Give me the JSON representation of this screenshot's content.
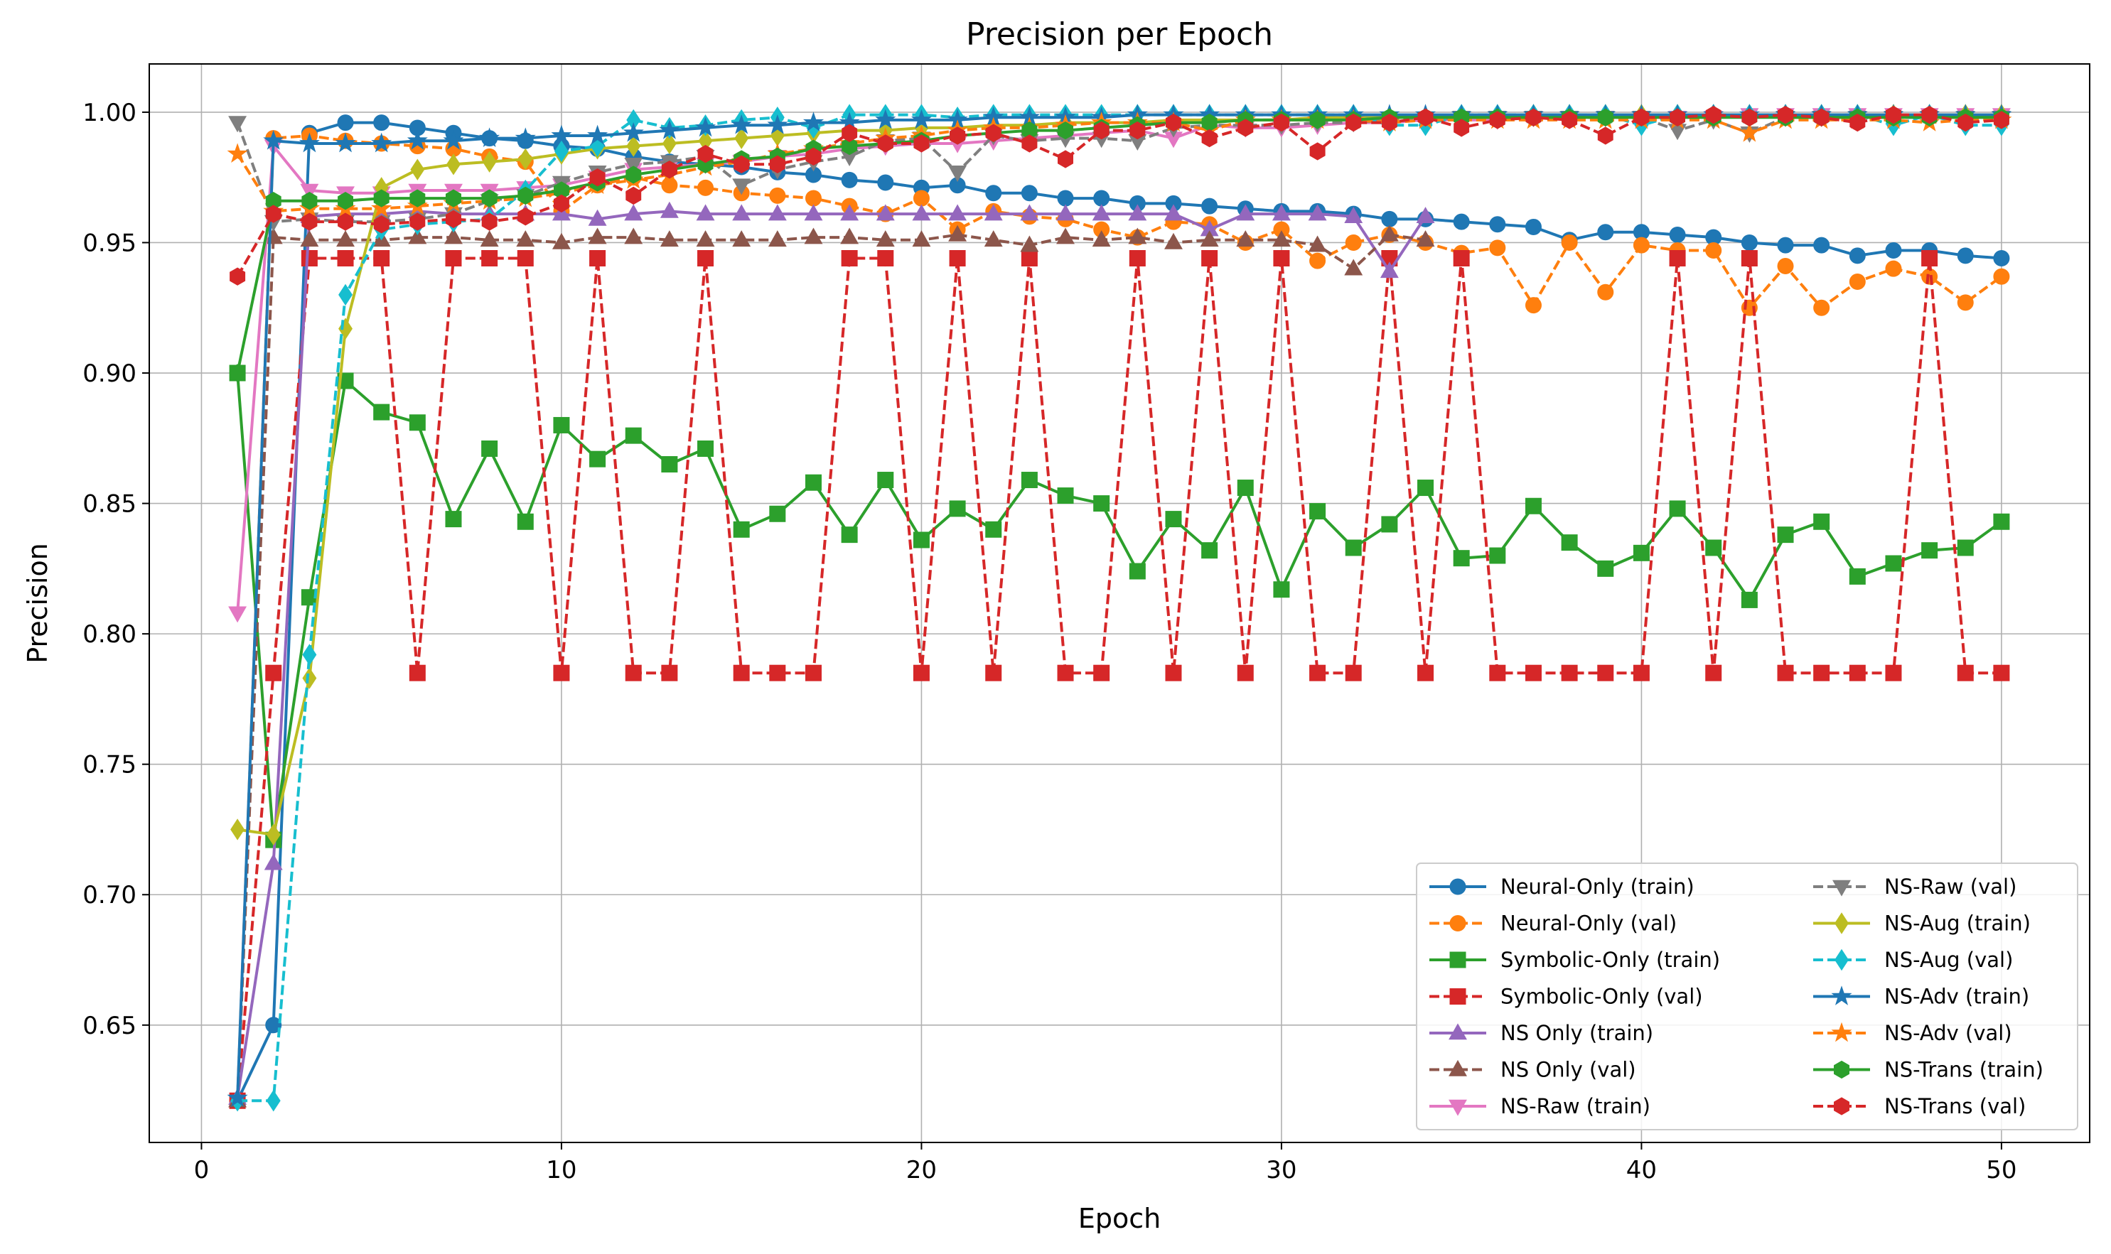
{
  "chart_data": {
    "type": "line",
    "title": "Precision per Epoch",
    "xlabel": "Epoch",
    "ylabel": "Precision",
    "xlim": [
      -1.45,
      52.45
    ],
    "ylim": [
      0.605,
      1.0185
    ],
    "xticks": [
      0,
      10,
      20,
      30,
      40,
      50
    ],
    "yticks": [
      0.65,
      0.7,
      0.75,
      0.8,
      0.85,
      0.9,
      0.95,
      1.0
    ],
    "ytick_labels": [
      "0.65",
      "0.70",
      "0.75",
      "0.80",
      "0.85",
      "0.90",
      "0.95",
      "1.00"
    ],
    "grid": true,
    "legend_position": "lower-right",
    "legend_columns": 2,
    "x": [
      1,
      2,
      3,
      4,
      5,
      6,
      7,
      8,
      9,
      10,
      11,
      12,
      13,
      14,
      15,
      16,
      17,
      18,
      19,
      20,
      21,
      22,
      23,
      24,
      25,
      26,
      27,
      28,
      29,
      30,
      31,
      32,
      33,
      34,
      35,
      36,
      37,
      38,
      39,
      40,
      41,
      42,
      43,
      44,
      45,
      46,
      47,
      48,
      49,
      50
    ],
    "series": [
      {
        "name": "Neural-Only (train)",
        "color": "#1f77b4",
        "marker": "circle",
        "dash": "solid",
        "values": [
          0.621,
          0.65,
          0.992,
          0.996,
          0.996,
          0.994,
          0.992,
          0.99,
          0.989,
          0.987,
          0.986,
          0.983,
          0.981,
          0.98,
          0.979,
          0.977,
          0.976,
          0.974,
          0.973,
          0.971,
          0.972,
          0.969,
          0.969,
          0.967,
          0.967,
          0.965,
          0.965,
          0.964,
          0.963,
          0.962,
          0.962,
          0.961,
          0.959,
          0.959,
          0.958,
          0.957,
          0.956,
          0.951,
          0.954,
          0.954,
          0.953,
          0.952,
          0.95,
          0.949,
          0.949,
          0.945,
          0.947,
          0.947,
          0.945,
          0.944
        ]
      },
      {
        "name": "Neural-Only (val)",
        "color": "#ff7f0e",
        "marker": "circle",
        "dash": "dashed",
        "values": [
          0.621,
          0.99,
          0.991,
          0.989,
          0.988,
          0.987,
          0.986,
          0.983,
          0.981,
          0.962,
          0.972,
          0.975,
          0.972,
          0.971,
          0.969,
          0.968,
          0.967,
          0.964,
          0.961,
          0.967,
          0.955,
          0.962,
          0.96,
          0.959,
          0.955,
          0.952,
          0.958,
          0.957,
          0.95,
          0.955,
          0.943,
          0.95,
          0.953,
          0.95,
          0.946,
          0.948,
          0.926,
          0.95,
          0.931,
          0.949,
          0.947,
          0.947,
          0.925,
          0.941,
          0.925,
          0.935,
          0.94,
          0.937,
          0.927,
          0.937
        ]
      },
      {
        "name": "Symbolic-Only (train)",
        "color": "#2ca02c",
        "marker": "square",
        "dash": "solid",
        "values": [
          0.9,
          0.721,
          0.814,
          0.897,
          0.885,
          0.881,
          0.844,
          0.871,
          0.843,
          0.88,
          0.867,
          0.876,
          0.865,
          0.871,
          0.84,
          0.846,
          0.858,
          0.838,
          0.859,
          0.836,
          0.848,
          0.84,
          0.859,
          0.853,
          0.85,
          0.824,
          0.844,
          0.832,
          0.856,
          0.817,
          0.847,
          0.833,
          0.842,
          0.856,
          0.829,
          0.83,
          0.849,
          0.835,
          0.825,
          0.831,
          0.848,
          0.833,
          0.813,
          0.838,
          0.843,
          0.822,
          0.827,
          0.832,
          0.833,
          0.843
        ]
      },
      {
        "name": "Symbolic-Only (val)",
        "color": "#d62728",
        "marker": "square",
        "dash": "dashed",
        "values": [
          0.621,
          0.785,
          0.944,
          0.944,
          0.944,
          0.785,
          0.944,
          0.944,
          0.944,
          0.785,
          0.944,
          0.785,
          0.785,
          0.944,
          0.785,
          0.785,
          0.785,
          0.944,
          0.944,
          0.785,
          0.944,
          0.785,
          0.944,
          0.785,
          0.785,
          0.944,
          0.785,
          0.944,
          0.785,
          0.944,
          0.785,
          0.785,
          0.944,
          0.785,
          0.944,
          0.785,
          0.785,
          0.785,
          0.785,
          0.785,
          0.944,
          0.785,
          0.944,
          0.785,
          0.785,
          0.785,
          0.785,
          0.944,
          0.785,
          0.785
        ]
      },
      {
        "name": "NS Only (train)",
        "color": "#9467bd",
        "marker": "triangle-up",
        "dash": "solid",
        "values": [
          0.622,
          0.712,
          0.96,
          0.961,
          0.961,
          0.962,
          0.961,
          0.961,
          0.961,
          0.961,
          0.959,
          0.961,
          0.962,
          0.961,
          0.961,
          0.961,
          0.961,
          0.961,
          0.961,
          0.961,
          0.961,
          0.961,
          0.961,
          0.961,
          0.961,
          0.961,
          0.961,
          0.955,
          0.961,
          0.961,
          0.961,
          0.96,
          0.939,
          0.96,
          null,
          null,
          null,
          null,
          null,
          null,
          null,
          null,
          null,
          null,
          null,
          null,
          null,
          null,
          null,
          null
        ]
      },
      {
        "name": "NS Only (val)",
        "color": "#8c564b",
        "marker": "triangle-up",
        "dash": "dashed",
        "values": [
          0.621,
          0.952,
          0.951,
          0.951,
          0.951,
          0.952,
          0.952,
          0.951,
          0.951,
          0.95,
          0.952,
          0.952,
          0.951,
          0.951,
          0.951,
          0.951,
          0.952,
          0.952,
          0.951,
          0.951,
          0.953,
          0.951,
          0.949,
          0.952,
          0.951,
          0.952,
          0.95,
          0.951,
          0.951,
          0.951,
          0.949,
          0.94,
          0.953,
          0.951,
          null,
          null,
          null,
          null,
          null,
          null,
          null,
          null,
          null,
          null,
          null,
          null,
          null,
          null,
          null,
          null
        ]
      },
      {
        "name": "NS-Raw (train)",
        "color": "#e377c2",
        "marker": "triangle-down",
        "dash": "solid",
        "values": [
          0.808,
          0.987,
          0.97,
          0.969,
          0.969,
          0.97,
          0.97,
          0.97,
          0.971,
          0.972,
          0.975,
          0.978,
          0.979,
          0.98,
          0.981,
          0.983,
          0.984,
          0.986,
          0.987,
          0.988,
          0.988,
          0.989,
          0.99,
          0.991,
          0.992,
          0.993,
          0.99,
          0.995,
          0.994,
          0.994,
          0.995,
          0.996,
          0.996,
          0.997,
          0.997,
          0.997,
          0.998,
          0.998,
          0.998,
          0.998,
          0.998,
          0.998,
          0.999,
          0.999,
          0.999,
          0.999,
          0.999,
          0.999,
          0.999,
          0.999
        ]
      },
      {
        "name": "NS-Raw (val)",
        "color": "#7f7f7f",
        "marker": "triangle-down",
        "dash": "dashed",
        "values": [
          0.996,
          0.958,
          0.959,
          0.958,
          0.958,
          0.959,
          0.961,
          0.966,
          0.968,
          0.973,
          0.977,
          0.98,
          0.981,
          0.983,
          0.972,
          0.978,
          0.981,
          0.983,
          0.989,
          0.99,
          0.977,
          0.991,
          0.989,
          0.99,
          0.99,
          0.989,
          0.994,
          0.995,
          0.995,
          0.995,
          0.996,
          0.996,
          0.997,
          0.997,
          0.998,
          0.998,
          0.998,
          0.998,
          0.998,
          0.998,
          0.993,
          0.997,
          0.992,
          0.998,
          0.998,
          0.998,
          0.998,
          0.998,
          0.998,
          0.998
        ]
      },
      {
        "name": "NS-Aug (train)",
        "color": "#bcbd22",
        "marker": "diamond",
        "dash": "solid",
        "values": [
          0.725,
          0.723,
          0.783,
          0.917,
          0.971,
          0.978,
          0.98,
          0.981,
          0.982,
          0.984,
          0.986,
          0.987,
          0.988,
          0.989,
          0.99,
          0.991,
          0.992,
          0.993,
          0.993,
          0.994,
          0.994,
          0.995,
          0.995,
          0.996,
          0.996,
          0.996,
          0.997,
          0.997,
          0.997,
          0.997,
          0.998,
          0.998,
          0.998,
          0.998,
          0.998,
          0.998,
          0.999,
          0.999,
          0.999,
          0.999,
          0.999,
          0.999,
          0.999,
          0.999,
          0.999,
          0.999,
          0.999,
          0.999,
          0.999,
          0.999
        ]
      },
      {
        "name": "NS-Aug (val)",
        "color": "#17becf",
        "marker": "diamond",
        "dash": "dashed",
        "values": [
          0.621,
          0.621,
          0.792,
          0.93,
          0.955,
          0.957,
          0.958,
          0.959,
          0.97,
          0.985,
          0.987,
          0.997,
          0.994,
          0.995,
          0.997,
          0.998,
          0.994,
          0.999,
          0.999,
          0.999,
          0.998,
          0.999,
          0.999,
          0.999,
          0.999,
          0.999,
          0.999,
          0.999,
          0.999,
          0.999,
          0.999,
          0.999,
          0.995,
          0.995,
          0.999,
          0.999,
          0.999,
          0.999,
          0.999,
          0.995,
          0.999,
          0.999,
          0.999,
          0.999,
          0.999,
          0.999,
          0.995,
          0.999,
          0.995,
          0.995
        ]
      },
      {
        "name": "NS-Adv (train)",
        "color": "#1f77b4",
        "marker": "star",
        "dash": "solid",
        "values": [
          0.622,
          0.989,
          0.988,
          0.988,
          0.988,
          0.989,
          0.989,
          0.99,
          0.99,
          0.991,
          0.991,
          0.992,
          0.993,
          0.994,
          0.995,
          0.995,
          0.996,
          0.996,
          0.997,
          0.997,
          0.997,
          0.998,
          0.998,
          0.998,
          0.998,
          0.999,
          0.999,
          0.999,
          0.999,
          0.999,
          0.999,
          0.999,
          0.999,
          0.999,
          0.999,
          0.999,
          0.999,
          0.999,
          0.999,
          0.999,
          0.999,
          0.999,
          0.999,
          0.999,
          0.999,
          0.999,
          0.999,
          0.999,
          0.999,
          0.999
        ]
      },
      {
        "name": "NS-Adv (val)",
        "color": "#ff7f0e",
        "marker": "star",
        "dash": "dashed",
        "values": [
          0.984,
          0.962,
          0.963,
          0.963,
          0.963,
          0.964,
          0.965,
          0.966,
          0.967,
          0.969,
          0.972,
          0.974,
          0.976,
          0.979,
          0.981,
          0.984,
          0.986,
          0.988,
          0.99,
          0.991,
          0.993,
          0.994,
          0.994,
          0.995,
          0.996,
          0.996,
          0.996,
          0.993,
          0.997,
          0.997,
          0.997,
          0.997,
          0.996,
          0.997,
          0.997,
          0.997,
          0.997,
          0.997,
          0.997,
          0.997,
          0.997,
          0.997,
          0.992,
          0.997,
          0.997,
          0.997,
          0.997,
          0.996,
          0.997,
          0.997
        ]
      },
      {
        "name": "NS-Trans (train)",
        "color": "#2ca02c",
        "marker": "hexagon",
        "dash": "solid",
        "values": [
          0.9,
          0.966,
          0.966,
          0.966,
          0.967,
          0.967,
          0.967,
          0.967,
          0.968,
          0.97,
          0.973,
          0.976,
          0.978,
          0.98,
          0.982,
          0.983,
          0.986,
          0.987,
          0.988,
          0.989,
          0.991,
          0.992,
          0.993,
          0.993,
          0.994,
          0.995,
          0.996,
          0.996,
          0.997,
          0.997,
          0.997,
          0.997,
          0.998,
          0.998,
          0.998,
          0.998,
          0.998,
          0.998,
          0.998,
          0.998,
          0.998,
          0.998,
          0.998,
          0.998,
          0.998,
          0.998,
          0.998,
          0.998,
          0.998,
          0.998
        ]
      },
      {
        "name": "NS-Trans (val)",
        "color": "#d62728",
        "marker": "hexagon",
        "dash": "dashed",
        "values": [
          0.937,
          0.961,
          0.958,
          0.958,
          0.957,
          0.958,
          0.959,
          0.958,
          0.96,
          0.965,
          0.975,
          0.968,
          0.978,
          0.984,
          0.98,
          0.98,
          0.983,
          0.992,
          0.988,
          0.988,
          0.991,
          0.992,
          0.988,
          0.982,
          0.993,
          0.993,
          0.996,
          0.99,
          0.994,
          0.996,
          0.985,
          0.996,
          0.996,
          0.998,
          0.994,
          0.997,
          0.998,
          0.997,
          0.991,
          0.998,
          0.998,
          0.999,
          0.998,
          0.999,
          0.998,
          0.996,
          0.999,
          0.999,
          0.996,
          0.997
        ]
      }
    ]
  }
}
